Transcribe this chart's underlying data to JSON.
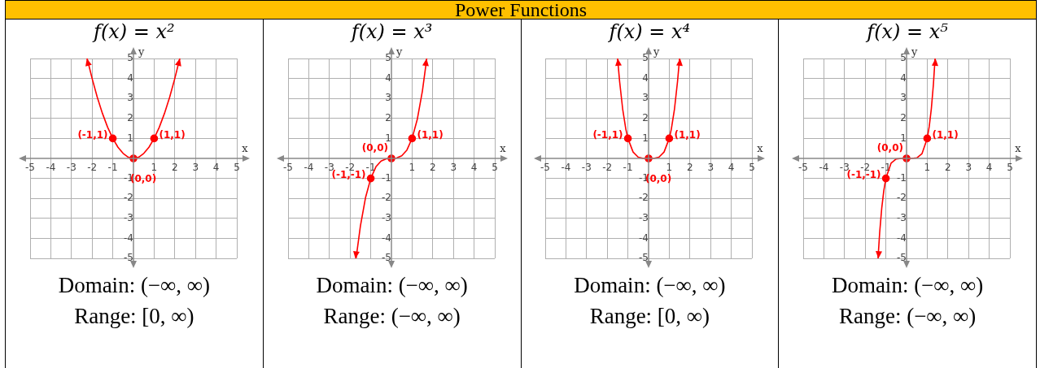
{
  "chart_data": [
    {
      "type": "other",
      "title": "Power Functions"
    },
    {
      "type": "line",
      "title": "f(x) = x²",
      "xlabel": "x",
      "ylabel": "y",
      "xlim": [
        -5,
        5
      ],
      "ylim": [
        -5,
        5
      ],
      "xticks": [
        -5,
        -4,
        -3,
        -2,
        -1,
        1,
        2,
        3,
        4,
        5
      ],
      "yticks": [
        -5,
        -4,
        -3,
        -2,
        -1,
        1,
        2,
        3,
        4,
        5
      ],
      "grid": true,
      "legend": false,
      "series": [
        {
          "type": "line",
          "color": "#ff0000",
          "marker": "none",
          "x": [
            -2.24,
            -2,
            -1.75,
            -1.5,
            -1.25,
            -1,
            -0.75,
            -0.5,
            -0.25,
            0,
            0.25,
            0.5,
            0.75,
            1,
            1.25,
            1.5,
            1.75,
            2,
            2.24
          ],
          "values": [
            5,
            4,
            3.06,
            2.25,
            1.56,
            1,
            0.56,
            0.25,
            0.06,
            0,
            0.06,
            0.25,
            0.56,
            1,
            1.56,
            2.25,
            3.06,
            4,
            5
          ]
        },
        {
          "type": "scatter",
          "color": "#ff0000",
          "marker": "circle",
          "x": [
            -1,
            0,
            1
          ],
          "values": [
            1,
            0,
            1
          ]
        }
      ],
      "annotations": [
        {
          "text": "(-1,1)",
          "x": -1,
          "y": 1
        },
        {
          "text": "(0,0)",
          "x": 0,
          "y": 0
        },
        {
          "text": "(1,1)",
          "x": 1,
          "y": 1
        },
        "Domain: (−∞, ∞)",
        "Range: [0, ∞)"
      ]
    },
    {
      "type": "line",
      "title": "f(x) = x³",
      "xlabel": "x",
      "ylabel": "y",
      "xlim": [
        -5,
        5
      ],
      "ylim": [
        -5,
        5
      ],
      "xticks": [
        -5,
        -4,
        -3,
        -2,
        -1,
        1,
        2,
        3,
        4,
        5
      ],
      "yticks": [
        -5,
        -4,
        -3,
        -2,
        -1,
        1,
        2,
        3,
        4,
        5
      ],
      "grid": true,
      "legend": false,
      "series": [
        {
          "type": "line",
          "color": "#ff0000",
          "marker": "none",
          "x": [
            -1.71,
            -1.5,
            -1.25,
            -1,
            -0.75,
            -0.5,
            -0.25,
            0,
            0.25,
            0.5,
            0.75,
            1,
            1.25,
            1.5,
            1.71
          ],
          "values": [
            -5,
            -3.38,
            -1.95,
            -1,
            -0.42,
            -0.13,
            -0.02,
            0,
            0.02,
            0.13,
            0.42,
            1,
            1.95,
            3.38,
            5
          ]
        },
        {
          "type": "scatter",
          "color": "#ff0000",
          "marker": "circle",
          "x": [
            -1,
            0,
            1
          ],
          "values": [
            -1,
            0,
            1
          ]
        }
      ],
      "annotations": [
        {
          "text": "(-1,-1)",
          "x": -1,
          "y": -1
        },
        {
          "text": "(0,0)",
          "x": 0,
          "y": 0
        },
        {
          "text": "(1,1)",
          "x": 1,
          "y": 1
        },
        "Domain: (−∞, ∞)",
        "Range: (−∞, ∞)"
      ]
    },
    {
      "type": "line",
      "title": "f(x) = x⁴",
      "xlabel": "x",
      "ylabel": "y",
      "xlim": [
        -5,
        5
      ],
      "ylim": [
        -5,
        5
      ],
      "xticks": [
        -5,
        -4,
        -3,
        -2,
        -1,
        1,
        2,
        3,
        4,
        5
      ],
      "yticks": [
        -5,
        -4,
        -3,
        -2,
        -1,
        1,
        2,
        3,
        4,
        5
      ],
      "grid": true,
      "legend": false,
      "series": [
        {
          "type": "line",
          "color": "#ff0000",
          "marker": "none",
          "x": [
            -1.5,
            -1.4,
            -1.25,
            -1.1,
            -1,
            -0.75,
            -0.5,
            -0.25,
            0,
            0.25,
            0.5,
            0.75,
            1,
            1.1,
            1.25,
            1.4,
            1.5
          ],
          "values": [
            5,
            3.84,
            2.44,
            1.46,
            1,
            0.32,
            0.06,
            0,
            0,
            0,
            0.06,
            0.32,
            1,
            1.46,
            2.44,
            3.84,
            5
          ]
        },
        {
          "type": "scatter",
          "color": "#ff0000",
          "marker": "circle",
          "x": [
            -1,
            0,
            1
          ],
          "values": [
            1,
            0,
            1
          ]
        }
      ],
      "annotations": [
        {
          "text": "(-1,1)",
          "x": -1,
          "y": 1
        },
        {
          "text": "(0,0)",
          "x": 0,
          "y": 0
        },
        {
          "text": "(1,1)",
          "x": 1,
          "y": 1
        },
        "Domain: (−∞, ∞)",
        "Range: [0, ∞)"
      ]
    },
    {
      "type": "line",
      "title": "f(x) = x⁵",
      "xlabel": "x",
      "ylabel": "y",
      "xlim": [
        -5,
        5
      ],
      "ylim": [
        -5,
        5
      ],
      "xticks": [
        -5,
        -4,
        -3,
        -2,
        -1,
        1,
        2,
        3,
        4,
        5
      ],
      "yticks": [
        -5,
        -4,
        -3,
        -2,
        -1,
        1,
        2,
        3,
        4,
        5
      ],
      "grid": true,
      "legend": false,
      "series": [
        {
          "type": "line",
          "color": "#ff0000",
          "marker": "none",
          "x": [
            -1.38,
            -1.3,
            -1.2,
            -1.1,
            -1,
            -0.75,
            -0.5,
            -0.25,
            0,
            0.25,
            0.5,
            0.75,
            1,
            1.1,
            1.2,
            1.3,
            1.38
          ],
          "values": [
            -5,
            -3.71,
            -2.49,
            -1.61,
            -1,
            -0.24,
            -0.03,
            0,
            0,
            0,
            0.03,
            0.24,
            1,
            1.61,
            2.49,
            3.71,
            5
          ]
        },
        {
          "type": "scatter",
          "color": "#ff0000",
          "marker": "circle",
          "x": [
            -1,
            0,
            1
          ],
          "values": [
            -1,
            0,
            1
          ]
        }
      ],
      "annotations": [
        {
          "text": "(-1,-1)",
          "x": -1,
          "y": -1
        },
        {
          "text": "(0,0)",
          "x": 0,
          "y": 0
        },
        {
          "text": "(1,1)",
          "x": 1,
          "y": 1
        },
        "Domain: (−∞, ∞)",
        "Range: (−∞, ∞)"
      ]
    }
  ]
}
